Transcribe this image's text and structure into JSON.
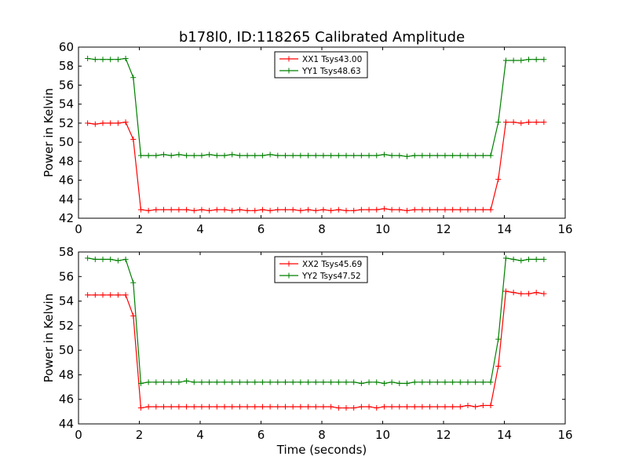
{
  "figure": {
    "title": "b178l0, ID:118265 Calibrated Amplitude",
    "xlabel": "Time (seconds)"
  },
  "chart_data": [
    {
      "type": "line",
      "ylabel": "Power in Kelvin",
      "xlim": [
        0,
        16
      ],
      "ylim": [
        42,
        60
      ],
      "xticks": [
        0,
        2,
        4,
        6,
        8,
        10,
        12,
        14,
        16
      ],
      "yticks": [
        42,
        44,
        46,
        48,
        50,
        52,
        54,
        56,
        58,
        60
      ],
      "legend": "top-center",
      "x": [
        0.3,
        0.55,
        0.8,
        1.05,
        1.3,
        1.55,
        1.8,
        2.05,
        2.3,
        2.55,
        2.8,
        3.05,
        3.3,
        3.55,
        3.8,
        4.05,
        4.3,
        4.55,
        4.8,
        5.05,
        5.3,
        5.55,
        5.8,
        6.05,
        6.3,
        6.55,
        6.8,
        7.05,
        7.3,
        7.55,
        7.8,
        8.05,
        8.3,
        8.55,
        8.8,
        9.05,
        9.3,
        9.55,
        9.8,
        10.05,
        10.3,
        10.55,
        10.8,
        11.05,
        11.3,
        11.55,
        11.8,
        12.05,
        12.3,
        12.55,
        12.8,
        13.05,
        13.3,
        13.55,
        13.8,
        14.05,
        14.3,
        14.55,
        14.8,
        15.05,
        15.3
      ],
      "series": [
        {
          "name": "XX1 Tsys43.00",
          "color": "#ff0000",
          "values": [
            52.0,
            51.9,
            52.0,
            52.0,
            52.0,
            52.1,
            50.3,
            42.9,
            42.8,
            42.9,
            42.9,
            42.9,
            42.9,
            42.9,
            42.8,
            42.9,
            42.8,
            42.9,
            42.9,
            42.8,
            42.9,
            42.8,
            42.8,
            42.9,
            42.8,
            42.9,
            42.9,
            42.9,
            42.8,
            42.9,
            42.8,
            42.9,
            42.8,
            42.9,
            42.8,
            42.8,
            42.9,
            42.9,
            42.9,
            43.0,
            42.9,
            42.9,
            42.8,
            42.9,
            42.9,
            42.9,
            42.9,
            42.9,
            42.9,
            42.9,
            42.9,
            42.9,
            42.9,
            42.9,
            46.1,
            52.1,
            52.1,
            52.0,
            52.1,
            52.1,
            52.1
          ]
        },
        {
          "name": "YY1 Tsys48.63",
          "color": "#008000",
          "values": [
            58.8,
            58.7,
            58.7,
            58.7,
            58.7,
            58.8,
            56.8,
            48.6,
            48.6,
            48.6,
            48.7,
            48.6,
            48.7,
            48.6,
            48.6,
            48.6,
            48.7,
            48.6,
            48.6,
            48.7,
            48.6,
            48.6,
            48.6,
            48.6,
            48.7,
            48.6,
            48.6,
            48.6,
            48.6,
            48.6,
            48.6,
            48.6,
            48.6,
            48.6,
            48.6,
            48.6,
            48.6,
            48.6,
            48.6,
            48.7,
            48.6,
            48.6,
            48.5,
            48.6,
            48.6,
            48.6,
            48.6,
            48.6,
            48.6,
            48.6,
            48.6,
            48.6,
            48.6,
            48.6,
            52.1,
            58.6,
            58.6,
            58.6,
            58.7,
            58.7,
            58.7
          ]
        }
      ]
    },
    {
      "type": "line",
      "ylabel": "Power in Kelvin",
      "xlabel": "Time (seconds)",
      "xlim": [
        0,
        16
      ],
      "ylim": [
        44,
        58
      ],
      "xticks": [
        0,
        2,
        4,
        6,
        8,
        10,
        12,
        14,
        16
      ],
      "yticks": [
        44,
        46,
        48,
        50,
        52,
        54,
        56,
        58
      ],
      "legend": "top-center",
      "x": [
        0.3,
        0.55,
        0.8,
        1.05,
        1.3,
        1.55,
        1.8,
        2.05,
        2.3,
        2.55,
        2.8,
        3.05,
        3.3,
        3.55,
        3.8,
        4.05,
        4.3,
        4.55,
        4.8,
        5.05,
        5.3,
        5.55,
        5.8,
        6.05,
        6.3,
        6.55,
        6.8,
        7.05,
        7.3,
        7.55,
        7.8,
        8.05,
        8.3,
        8.55,
        8.8,
        9.05,
        9.3,
        9.55,
        9.8,
        10.05,
        10.3,
        10.55,
        10.8,
        11.05,
        11.3,
        11.55,
        11.8,
        12.05,
        12.3,
        12.55,
        12.8,
        13.05,
        13.3,
        13.55,
        13.8,
        14.05,
        14.3,
        14.55,
        14.8,
        15.05,
        15.3
      ],
      "series": [
        {
          "name": "XX2 Tsys45.69",
          "color": "#ff0000",
          "values": [
            54.5,
            54.5,
            54.5,
            54.5,
            54.5,
            54.5,
            52.8,
            45.3,
            45.4,
            45.4,
            45.4,
            45.4,
            45.4,
            45.4,
            45.4,
            45.4,
            45.4,
            45.4,
            45.4,
            45.4,
            45.4,
            45.4,
            45.4,
            45.4,
            45.4,
            45.4,
            45.4,
            45.4,
            45.4,
            45.4,
            45.4,
            45.4,
            45.4,
            45.3,
            45.3,
            45.3,
            45.4,
            45.4,
            45.3,
            45.4,
            45.4,
            45.4,
            45.4,
            45.4,
            45.4,
            45.4,
            45.4,
            45.4,
            45.4,
            45.4,
            45.5,
            45.4,
            45.5,
            45.5,
            48.7,
            54.8,
            54.7,
            54.6,
            54.6,
            54.7,
            54.6
          ]
        },
        {
          "name": "YY2 Tsys47.52",
          "color": "#008000",
          "values": [
            57.5,
            57.4,
            57.4,
            57.4,
            57.3,
            57.4,
            55.5,
            47.3,
            47.4,
            47.4,
            47.4,
            47.4,
            47.4,
            47.5,
            47.4,
            47.4,
            47.4,
            47.4,
            47.4,
            47.4,
            47.4,
            47.4,
            47.4,
            47.4,
            47.4,
            47.4,
            47.4,
            47.4,
            47.4,
            47.4,
            47.4,
            47.4,
            47.4,
            47.4,
            47.4,
            47.4,
            47.3,
            47.4,
            47.4,
            47.3,
            47.4,
            47.3,
            47.3,
            47.4,
            47.4,
            47.4,
            47.4,
            47.4,
            47.4,
            47.4,
            47.4,
            47.4,
            47.4,
            47.4,
            50.9,
            57.5,
            57.4,
            57.3,
            57.4,
            57.4,
            57.4
          ]
        }
      ]
    }
  ]
}
